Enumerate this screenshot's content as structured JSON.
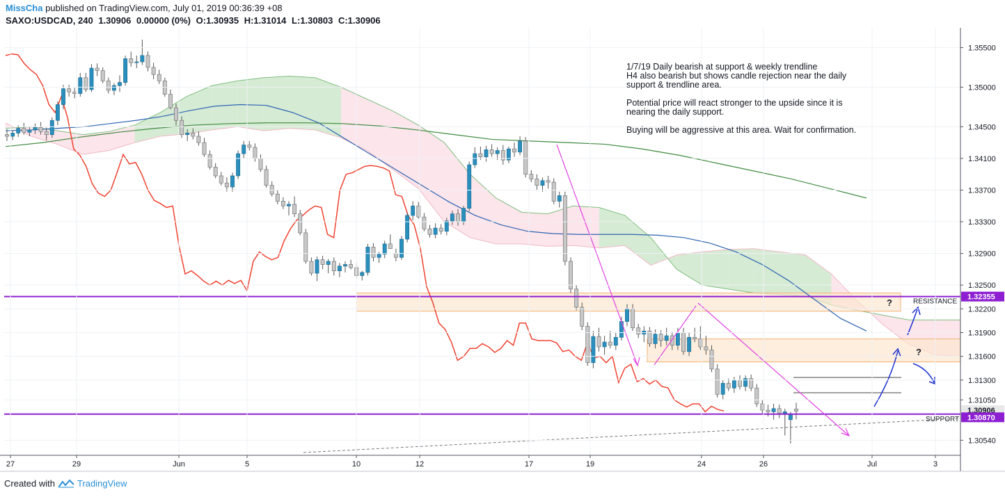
{
  "header": {
    "author": "MissCha",
    "published": " published on TradingView.com, July 01, 2019 00:36:39 +08",
    "symbol": "SAXO:USDCAD, 240",
    "last": "1.30906",
    "change": "0.00000 (0%)",
    "ohlc_o": "O:1.30935",
    "ohlc_h": "H:1.31014",
    "ohlc_l": "L:1.30803",
    "ohlc_c": "C:1.30906"
  },
  "note": "1/7/19 Daily bearish at support & weekly trendline\nH4 also bearish but shows candle rejection near the daily\nsupport & trendline area.\n\nPotential price will react stronger to the upside since it is\nnearing the daily support.\n\nBuying will be aggressive at this area. Wait for confirmation.",
  "footer": {
    "created_with": "Created with",
    "brand": "TradingView"
  },
  "colors": {
    "bull": "#2a8fbd",
    "bear": "#c8c8c8",
    "red_line": "#f0412f",
    "blue_ma": "#2d64b3",
    "green_ma": "#3f8a3f",
    "cloud_green": "#cfe8cc",
    "cloud_red": "#fbe1e8",
    "purple": "#8d1ed2",
    "zone": "#fce7d0",
    "zone_border": "#f3b173",
    "magenta": "#e040e0",
    "arrow_blue": "#1a2fd1"
  },
  "chart_data": {
    "type": "candlestick",
    "symbol": "SAXO:USDCAD",
    "timeframe": "240",
    "x_ticks": [
      "27",
      "29",
      "Jun",
      "5",
      "10",
      "12",
      "17",
      "19",
      "24",
      "26",
      "Jul",
      "3"
    ],
    "y_ticks": [
      "1.35500",
      "1.35000",
      "1.34500",
      "1.34100",
      "1.33700",
      "1.33300",
      "1.32900",
      "1.32500",
      "1.32200",
      "1.31900",
      "1.31600",
      "1.31300",
      "1.31050",
      "1.30540"
    ],
    "ylim": [
      1.3035,
      1.3575
    ],
    "price_labels": {
      "current": "1.30906",
      "resistance": "1.32355",
      "support": "1.30870"
    },
    "levels": [
      {
        "label": "RESISTANCE",
        "value": 1.32355
      },
      {
        "label": "SUPPORT",
        "value": 1.3087
      }
    ],
    "zones": [
      {
        "label": "",
        "low": 1.3217,
        "high": 1.324
      },
      {
        "label": "",
        "low": 1.3153,
        "high": 1.3182
      }
    ],
    "annotations": [
      "?",
      "?"
    ],
    "ohlc": [
      [
        1.344,
        1.3447,
        1.3432,
        1.3438
      ],
      [
        1.3438,
        1.3446,
        1.3433,
        1.3442
      ],
      [
        1.3442,
        1.3452,
        1.3437,
        1.3448
      ],
      [
        1.3448,
        1.3455,
        1.344,
        1.3443
      ],
      [
        1.3443,
        1.345,
        1.3438,
        1.3446
      ],
      [
        1.3446,
        1.3454,
        1.3441,
        1.3449
      ],
      [
        1.3449,
        1.3456,
        1.344,
        1.3444
      ],
      [
        1.3444,
        1.3449,
        1.3433,
        1.344
      ],
      [
        1.344,
        1.3462,
        1.3436,
        1.3458
      ],
      [
        1.3458,
        1.3482,
        1.3452,
        1.3478
      ],
      [
        1.3478,
        1.3503,
        1.3472,
        1.3498
      ],
      [
        1.3498,
        1.3503,
        1.3488,
        1.3494
      ],
      [
        1.3494,
        1.3499,
        1.3486,
        1.3492
      ],
      [
        1.3492,
        1.3518,
        1.3488,
        1.3512
      ],
      [
        1.3512,
        1.3518,
        1.3494,
        1.3497
      ],
      [
        1.3497,
        1.3529,
        1.3494,
        1.3524
      ],
      [
        1.3524,
        1.353,
        1.3514,
        1.3521
      ],
      [
        1.3521,
        1.3525,
        1.3505,
        1.3508
      ],
      [
        1.3508,
        1.3512,
        1.3492,
        1.3496
      ],
      [
        1.3496,
        1.3505,
        1.349,
        1.3502
      ],
      [
        1.3502,
        1.3515,
        1.3494,
        1.3506
      ],
      [
        1.3506,
        1.354,
        1.3502,
        1.3536
      ],
      [
        1.3536,
        1.3545,
        1.3526,
        1.3531
      ],
      [
        1.3531,
        1.354,
        1.3524,
        1.3532
      ],
      [
        1.3532,
        1.356,
        1.3528,
        1.354
      ],
      [
        1.354,
        1.3545,
        1.352,
        1.3525
      ],
      [
        1.3525,
        1.3531,
        1.351,
        1.3516
      ],
      [
        1.3516,
        1.3522,
        1.3504,
        1.3508
      ],
      [
        1.3508,
        1.3512,
        1.3488,
        1.3491
      ],
      [
        1.3491,
        1.3497,
        1.3472,
        1.3474
      ],
      [
        1.3474,
        1.3479,
        1.3452,
        1.3458
      ],
      [
        1.3458,
        1.3463,
        1.3436,
        1.344
      ],
      [
        1.344,
        1.3447,
        1.3432,
        1.3442
      ],
      [
        1.3442,
        1.3448,
        1.3434,
        1.3438
      ],
      [
        1.3438,
        1.3444,
        1.3426,
        1.343
      ],
      [
        1.343,
        1.3436,
        1.3412,
        1.3415
      ],
      [
        1.3415,
        1.342,
        1.3396,
        1.3399
      ],
      [
        1.3399,
        1.3404,
        1.3385,
        1.3388
      ],
      [
        1.3388,
        1.3393,
        1.3376,
        1.3379
      ],
      [
        1.3379,
        1.3386,
        1.3368,
        1.3374
      ],
      [
        1.3374,
        1.3392,
        1.3368,
        1.3388
      ],
      [
        1.3388,
        1.342,
        1.3384,
        1.3416
      ],
      [
        1.3416,
        1.3432,
        1.341,
        1.3427
      ],
      [
        1.3427,
        1.3432,
        1.342,
        1.3424
      ],
      [
        1.3424,
        1.3429,
        1.3406,
        1.341
      ],
      [
        1.341,
        1.3415,
        1.3393,
        1.3396
      ],
      [
        1.3396,
        1.3401,
        1.3373,
        1.3376
      ],
      [
        1.3376,
        1.3381,
        1.3362,
        1.3365
      ],
      [
        1.3365,
        1.337,
        1.3352,
        1.3356
      ],
      [
        1.3356,
        1.3361,
        1.3346,
        1.335
      ],
      [
        1.335,
        1.3356,
        1.3338,
        1.3352
      ],
      [
        1.3352,
        1.3362,
        1.3336,
        1.334
      ],
      [
        1.334,
        1.3345,
        1.3313,
        1.3316
      ],
      [
        1.3316,
        1.3321,
        1.3277,
        1.328
      ],
      [
        1.328,
        1.3285,
        1.3262,
        1.3265
      ],
      [
        1.3265,
        1.3286,
        1.3255,
        1.3282
      ],
      [
        1.3282,
        1.3287,
        1.327,
        1.3276
      ],
      [
        1.3276,
        1.3283,
        1.3265,
        1.328
      ],
      [
        1.328,
        1.3285,
        1.3262,
        1.3268
      ],
      [
        1.3268,
        1.3278,
        1.326,
        1.3274
      ],
      [
        1.3274,
        1.328,
        1.3266,
        1.3276
      ],
      [
        1.3276,
        1.3282,
        1.327,
        1.3272
      ],
      [
        1.3272,
        1.3278,
        1.3258,
        1.3262
      ],
      [
        1.3262,
        1.3268,
        1.3256,
        1.3266
      ],
      [
        1.3266,
        1.3302,
        1.3262,
        1.3298
      ],
      [
        1.3298,
        1.3303,
        1.328,
        1.3285
      ],
      [
        1.3285,
        1.3292,
        1.3278,
        1.3289
      ],
      [
        1.3289,
        1.3306,
        1.3284,
        1.3302
      ],
      [
        1.3302,
        1.3314,
        1.3298,
        1.3296
      ],
      [
        1.329,
        1.3296,
        1.328,
        1.3285
      ],
      [
        1.3285,
        1.3312,
        1.3282,
        1.3308
      ],
      [
        1.3308,
        1.3342,
        1.3304,
        1.3338
      ],
      [
        1.3338,
        1.3356,
        1.3332,
        1.335
      ],
      [
        1.335,
        1.3355,
        1.3334,
        1.3336
      ],
      [
        1.3336,
        1.3341,
        1.3318,
        1.3321
      ],
      [
        1.3321,
        1.3326,
        1.331,
        1.3314
      ],
      [
        1.3314,
        1.3328,
        1.3309,
        1.3322
      ],
      [
        1.3322,
        1.3327,
        1.3314,
        1.3318
      ],
      [
        1.3318,
        1.3335,
        1.3313,
        1.3331
      ],
      [
        1.3331,
        1.3344,
        1.3326,
        1.334
      ],
      [
        1.334,
        1.3346,
        1.3325,
        1.333
      ],
      [
        1.333,
        1.335,
        1.3326,
        1.3347
      ],
      [
        1.3347,
        1.3406,
        1.3343,
        1.3402
      ],
      [
        1.3402,
        1.3424,
        1.3398,
        1.3416
      ],
      [
        1.3416,
        1.3425,
        1.3408,
        1.3412
      ],
      [
        1.3412,
        1.3426,
        1.3406,
        1.3421
      ],
      [
        1.3421,
        1.3428,
        1.3412,
        1.3416
      ],
      [
        1.3416,
        1.3424,
        1.3408,
        1.342
      ],
      [
        1.342,
        1.3427,
        1.3402,
        1.3408
      ],
      [
        1.3408,
        1.3425,
        1.3404,
        1.3422
      ],
      [
        1.3422,
        1.343,
        1.3412,
        1.3418
      ],
      [
        1.3418,
        1.3438,
        1.3414,
        1.3432
      ],
      [
        1.3432,
        1.3437,
        1.3386,
        1.339
      ],
      [
        1.339,
        1.3395,
        1.338,
        1.3384
      ],
      [
        1.3384,
        1.339,
        1.337,
        1.3376
      ],
      [
        1.3376,
        1.3386,
        1.3368,
        1.3382
      ],
      [
        1.3382,
        1.3388,
        1.3372,
        1.338
      ],
      [
        1.338,
        1.3385,
        1.3352,
        1.3356
      ],
      [
        1.3356,
        1.3368,
        1.3348,
        1.3363
      ],
      [
        1.3363,
        1.3368,
        1.3275,
        1.328
      ],
      [
        1.328,
        1.3285,
        1.324,
        1.3245
      ],
      [
        1.3245,
        1.325,
        1.3218,
        1.3222
      ],
      [
        1.3222,
        1.3228,
        1.3193,
        1.3198
      ],
      [
        1.3198,
        1.3203,
        1.3148,
        1.3152
      ],
      [
        1.3152,
        1.3192,
        1.3145,
        1.3185
      ],
      [
        1.3185,
        1.3196,
        1.3166,
        1.3172
      ],
      [
        1.3172,
        1.3186,
        1.3162,
        1.3178
      ],
      [
        1.3178,
        1.3192,
        1.317,
        1.3174
      ],
      [
        1.3174,
        1.319,
        1.3168,
        1.3184
      ],
      [
        1.3184,
        1.321,
        1.318,
        1.3204
      ],
      [
        1.3204,
        1.3226,
        1.3198,
        1.322
      ],
      [
        1.322,
        1.3226,
        1.3192,
        1.3196
      ],
      [
        1.3196,
        1.3201,
        1.3183,
        1.3188
      ],
      [
        1.3188,
        1.3198,
        1.3178,
        1.3192
      ],
      [
        1.3192,
        1.3197,
        1.3172,
        1.3176
      ],
      [
        1.3176,
        1.3194,
        1.317,
        1.3188
      ],
      [
        1.3188,
        1.3193,
        1.3172,
        1.318
      ],
      [
        1.318,
        1.3196,
        1.3174,
        1.3186
      ],
      [
        1.3186,
        1.3191,
        1.3168,
        1.3174
      ],
      [
        1.3174,
        1.3196,
        1.3168,
        1.319
      ],
      [
        1.319,
        1.3196,
        1.3162,
        1.3166
      ],
      [
        1.3166,
        1.319,
        1.316,
        1.3184
      ],
      [
        1.3184,
        1.3196,
        1.3178,
        1.3182
      ],
      [
        1.3182,
        1.3198,
        1.3168,
        1.3172
      ],
      [
        1.3172,
        1.3186,
        1.3162,
        1.3168
      ],
      [
        1.3168,
        1.3174,
        1.314,
        1.3144
      ],
      [
        1.3144,
        1.315,
        1.3108,
        1.3112
      ],
      [
        1.3112,
        1.313,
        1.3106,
        1.3126
      ],
      [
        1.3126,
        1.3132,
        1.3116,
        1.312
      ],
      [
        1.312,
        1.3134,
        1.3114,
        1.313
      ],
      [
        1.313,
        1.3136,
        1.3118,
        1.3122
      ],
      [
        1.3122,
        1.3136,
        1.3116,
        1.3132
      ],
      [
        1.3132,
        1.3137,
        1.3116,
        1.312
      ],
      [
        1.312,
        1.3125,
        1.3096,
        1.31
      ],
      [
        1.31,
        1.3105,
        1.3088,
        1.3092
      ],
      [
        1.3092,
        1.3099,
        1.3084,
        1.309
      ],
      [
        1.309,
        1.31,
        1.308,
        1.3094
      ],
      [
        1.3094,
        1.3099,
        1.3082,
        1.3088
      ],
      [
        1.3088,
        1.3094,
        1.306,
        1.309
      ],
      [
        1.308,
        1.309,
        1.305,
        1.3087
      ],
      [
        1.30935,
        1.31014,
        1.30803,
        1.30906
      ]
    ],
    "series_red": [
      1.354,
      1.3542,
      1.3541,
      1.353,
      1.3522,
      1.3516,
      1.3502,
      1.3478,
      1.3468,
      1.3488,
      1.3462,
      1.3422,
      1.3414,
      1.34,
      1.3378,
      1.3366,
      1.3362,
      1.337,
      1.3392,
      1.3415,
      1.3403,
      1.3405,
      1.339,
      1.337,
      1.3357,
      1.3353,
      1.3348,
      1.335,
      1.33,
      1.3264,
      1.3268,
      1.3262,
      1.3255,
      1.325,
      1.3255,
      1.325,
      1.3256,
      1.3252,
      1.3256,
      1.3243,
      1.328,
      1.3292,
      1.3286,
      1.3282,
      1.3285,
      1.3306,
      1.3321,
      1.3332,
      1.3338,
      1.3345,
      1.335,
      1.3348,
      1.3314,
      1.331,
      1.337,
      1.339,
      1.3392,
      1.3396,
      1.34,
      1.3401,
      1.34,
      1.3398,
      1.3394,
      1.3364,
      1.3362,
      1.3338,
      1.3326,
      1.3296,
      1.3248,
      1.3228,
      1.3202,
      1.3194,
      1.3178,
      1.3155,
      1.316,
      1.317,
      1.317,
      1.3176,
      1.3172,
      1.3165,
      1.317,
      1.318,
      1.3174,
      1.3202,
      1.3202,
      1.3182,
      1.318,
      1.318,
      1.318,
      1.3177,
      1.3166,
      1.3168,
      1.316,
      1.3155,
      1.3178,
      1.3158,
      1.316,
      1.3152,
      1.316,
      1.3127,
      1.3145,
      1.315,
      1.3128,
      1.3132,
      1.3125,
      1.313,
      1.3122,
      1.312,
      1.3105,
      1.31,
      1.3096,
      1.31,
      1.31,
      1.309,
      1.3097,
      1.3093,
      1.3091
    ],
    "series_blue_ma": [
      1.3445,
      1.3446,
      1.3448,
      1.345,
      1.3454,
      1.3458,
      1.3463,
      1.347,
      1.3476,
      1.3478,
      1.3477,
      1.3468,
      1.3455,
      1.3435,
      1.3415,
      1.3395,
      1.3375,
      1.3355,
      1.3338,
      1.3326,
      1.3318,
      1.3315,
      1.3314,
      1.3314,
      1.3314,
      1.3313,
      1.331,
      1.3303,
      1.3292,
      1.3276,
      1.3256,
      1.3232,
      1.3208,
      1.3192
    ],
    "series_green_ma": [
      1.3425,
      1.343,
      1.3437,
      1.3443,
      1.3448,
      1.3452,
      1.3454,
      1.3455,
      1.3455,
      1.3454,
      1.3451,
      1.3446,
      1.344,
      1.3434,
      1.3432,
      1.343,
      1.3428,
      1.3422,
      1.3414,
      1.3404,
      1.3394,
      1.3384,
      1.3372,
      1.336
    ],
    "series_cloud_upper": [
      1.3448,
      1.345,
      1.3445,
      1.344,
      1.3444,
      1.3452,
      1.3468,
      1.3488,
      1.3502,
      1.3508,
      1.3512,
      1.3514,
      1.3512,
      1.35,
      1.3485,
      1.347,
      1.3452,
      1.343,
      1.339,
      1.336,
      1.3342,
      1.334,
      1.335,
      1.3348,
      1.3338,
      1.331,
      1.327,
      1.325,
      1.3245,
      1.324,
      1.3238,
      1.3236,
      1.3225,
      1.3218,
      1.3212,
      1.3206,
      1.3206,
      1.3206
    ],
    "series_cloud_lower": [
      1.3455,
      1.3438,
      1.3428,
      1.3415,
      1.342,
      1.343,
      1.3438,
      1.3441,
      1.3446,
      1.345,
      1.3445,
      1.3448,
      1.3446,
      1.3436,
      1.342,
      1.3396,
      1.3372,
      1.333,
      1.331,
      1.3302,
      1.3302,
      1.3299,
      1.33,
      1.3297,
      1.33,
      1.3275,
      1.3288,
      1.3292,
      1.3295,
      1.3296,
      1.3292,
      1.3288,
      1.3264,
      1.323,
      1.32,
      1.3175,
      1.3162,
      1.316
    ]
  }
}
